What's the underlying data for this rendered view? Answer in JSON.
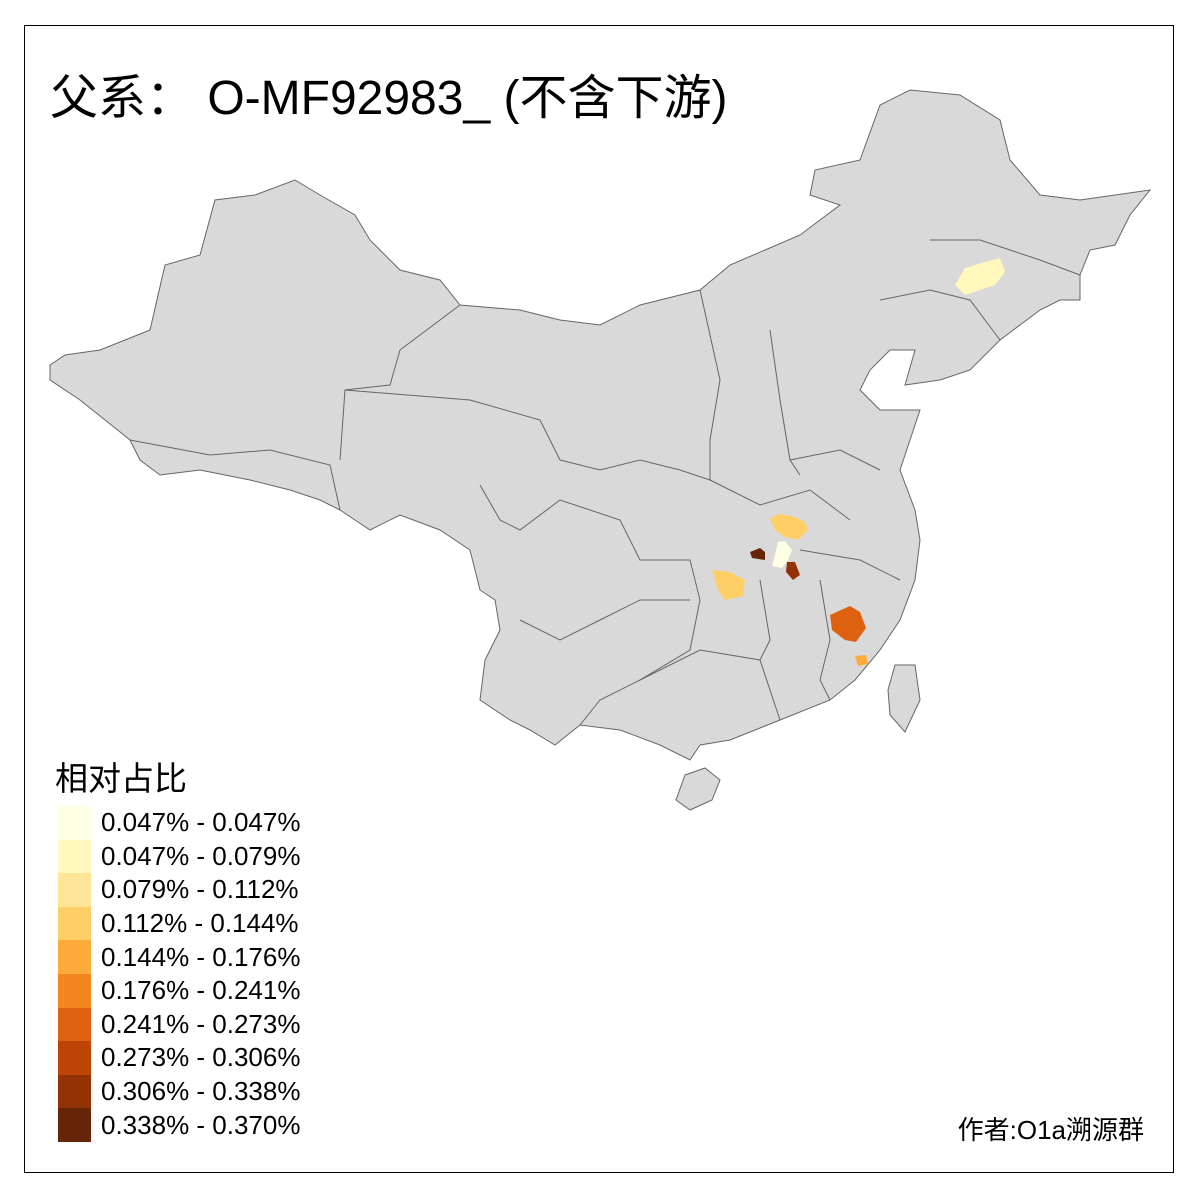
{
  "title": "父系： O-MF92983_ (不含下游)",
  "legend": {
    "title": "相对占比",
    "items": [
      {
        "label": "0.047% - 0.047%",
        "color": "#FFFFE5"
      },
      {
        "label": "0.047% - 0.079%",
        "color": "#FFF7BC"
      },
      {
        "label": "0.079% - 0.112%",
        "color": "#FEE497"
      },
      {
        "label": "0.112% - 0.144%",
        "color": "#FECF66"
      },
      {
        "label": "0.144% - 0.176%",
        "color": "#FDAB3B"
      },
      {
        "label": "0.176% - 0.241%",
        "color": "#F3861F"
      },
      {
        "label": "0.241% - 0.273%",
        "color": "#DE6110"
      },
      {
        "label": "0.273% - 0.306%",
        "color": "#BD4405"
      },
      {
        "label": "0.306% - 0.338%",
        "color": "#923205"
      },
      {
        "label": "0.338% - 0.370%",
        "color": "#662506"
      }
    ]
  },
  "map": {
    "base_color": "#D9D9D9",
    "border_color": "#666666"
  },
  "author": "作者:O1a溯源群"
}
